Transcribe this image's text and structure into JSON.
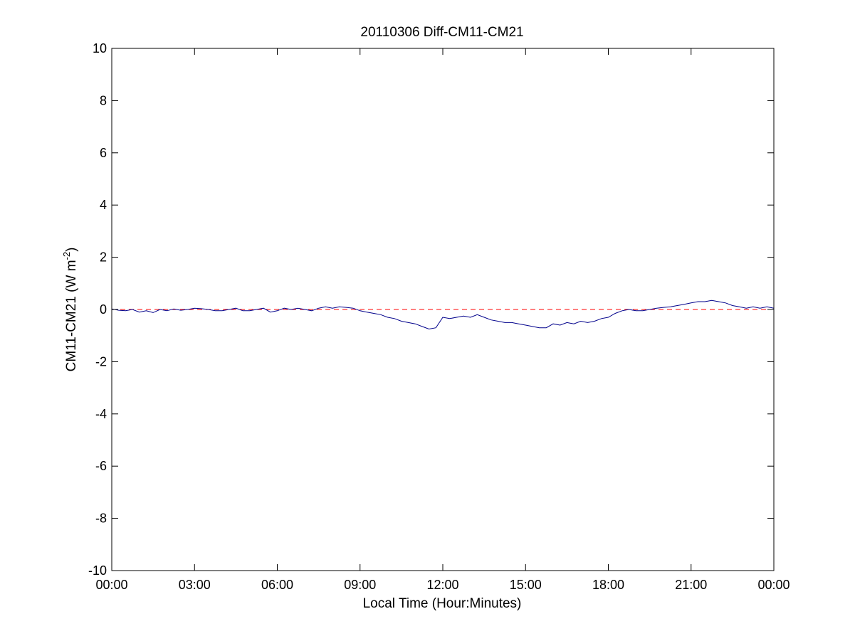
{
  "chart_data": {
    "type": "line",
    "title": "20110306 Diff-CM11-CM21",
    "xlabel": "Local Time (Hour:Minutes)",
    "ylabel_main": "CM11-CM21 (W m",
    "ylabel_sup": "-2",
    "ylabel_close": ")",
    "xlim": [
      0,
      24
    ],
    "ylim": [
      -10,
      10
    ],
    "x_ticks": [
      0,
      3,
      6,
      9,
      12,
      15,
      18,
      21,
      24
    ],
    "x_tick_labels": [
      "00:00",
      "03:00",
      "06:00",
      "09:00",
      "12:00",
      "15:00",
      "18:00",
      "21:00",
      "00:00"
    ],
    "y_ticks": [
      -10,
      -8,
      -6,
      -4,
      -2,
      0,
      2,
      4,
      6,
      8,
      10
    ],
    "y_tick_labels": [
      "-10",
      "-8",
      "-6",
      "-4",
      "-2",
      "0",
      "2",
      "4",
      "6",
      "8",
      "10"
    ],
    "grid": false,
    "reference_line": {
      "y": 0,
      "style": "dashed",
      "color": "#ff0000"
    },
    "series": [
      {
        "color": "#00008b",
        "points": [
          [
            0.0,
            0.02
          ],
          [
            0.25,
            -0.03
          ],
          [
            0.5,
            -0.05
          ],
          [
            0.75,
            0.0
          ],
          [
            1.0,
            -0.1
          ],
          [
            1.25,
            -0.05
          ],
          [
            1.5,
            -0.12
          ],
          [
            1.75,
            0.0
          ],
          [
            2.0,
            -0.05
          ],
          [
            2.25,
            0.02
          ],
          [
            2.5,
            -0.03
          ],
          [
            2.75,
            0.0
          ],
          [
            3.0,
            0.05
          ],
          [
            3.25,
            0.03
          ],
          [
            3.5,
            0.0
          ],
          [
            3.75,
            -0.05
          ],
          [
            4.0,
            -0.05
          ],
          [
            4.25,
            0.0
          ],
          [
            4.5,
            0.05
          ],
          [
            4.75,
            -0.05
          ],
          [
            5.0,
            -0.05
          ],
          [
            5.25,
            0.0
          ],
          [
            5.5,
            0.05
          ],
          [
            5.75,
            -0.1
          ],
          [
            6.0,
            -0.05
          ],
          [
            6.25,
            0.05
          ],
          [
            6.5,
            0.0
          ],
          [
            6.75,
            0.05
          ],
          [
            7.0,
            0.0
          ],
          [
            7.25,
            -0.05
          ],
          [
            7.5,
            0.05
          ],
          [
            7.75,
            0.1
          ],
          [
            8.0,
            0.05
          ],
          [
            8.25,
            0.1
          ],
          [
            8.5,
            0.08
          ],
          [
            8.75,
            0.05
          ],
          [
            9.0,
            -0.05
          ],
          [
            9.25,
            -0.1
          ],
          [
            9.5,
            -0.15
          ],
          [
            9.75,
            -0.2
          ],
          [
            10.0,
            -0.3
          ],
          [
            10.25,
            -0.35
          ],
          [
            10.5,
            -0.45
          ],
          [
            10.75,
            -0.5
          ],
          [
            11.0,
            -0.55
          ],
          [
            11.25,
            -0.65
          ],
          [
            11.5,
            -0.75
          ],
          [
            11.75,
            -0.7
          ],
          [
            12.0,
            -0.3
          ],
          [
            12.25,
            -0.35
          ],
          [
            12.5,
            -0.3
          ],
          [
            12.75,
            -0.25
          ],
          [
            13.0,
            -0.3
          ],
          [
            13.25,
            -0.2
          ],
          [
            13.5,
            -0.3
          ],
          [
            13.75,
            -0.4
          ],
          [
            14.0,
            -0.45
          ],
          [
            14.25,
            -0.5
          ],
          [
            14.5,
            -0.5
          ],
          [
            14.75,
            -0.55
          ],
          [
            15.0,
            -0.6
          ],
          [
            15.25,
            -0.65
          ],
          [
            15.5,
            -0.7
          ],
          [
            15.75,
            -0.7
          ],
          [
            16.0,
            -0.55
          ],
          [
            16.25,
            -0.6
          ],
          [
            16.5,
            -0.5
          ],
          [
            16.75,
            -0.55
          ],
          [
            17.0,
            -0.45
          ],
          [
            17.25,
            -0.5
          ],
          [
            17.5,
            -0.45
          ],
          [
            17.75,
            -0.35
          ],
          [
            18.0,
            -0.3
          ],
          [
            18.25,
            -0.15
          ],
          [
            18.5,
            -0.05
          ],
          [
            18.75,
            0.0
          ],
          [
            19.0,
            -0.05
          ],
          [
            19.25,
            -0.05
          ],
          [
            19.5,
            0.0
          ],
          [
            19.75,
            0.05
          ],
          [
            20.0,
            0.08
          ],
          [
            20.25,
            0.1
          ],
          [
            20.5,
            0.15
          ],
          [
            20.75,
            0.2
          ],
          [
            21.0,
            0.25
          ],
          [
            21.25,
            0.3
          ],
          [
            21.5,
            0.3
          ],
          [
            21.75,
            0.35
          ],
          [
            22.0,
            0.3
          ],
          [
            22.25,
            0.25
          ],
          [
            22.5,
            0.15
          ],
          [
            22.75,
            0.1
          ],
          [
            23.0,
            0.05
          ],
          [
            23.25,
            0.1
          ],
          [
            23.5,
            0.05
          ],
          [
            23.75,
            0.1
          ],
          [
            24.0,
            0.05
          ]
        ]
      }
    ]
  }
}
